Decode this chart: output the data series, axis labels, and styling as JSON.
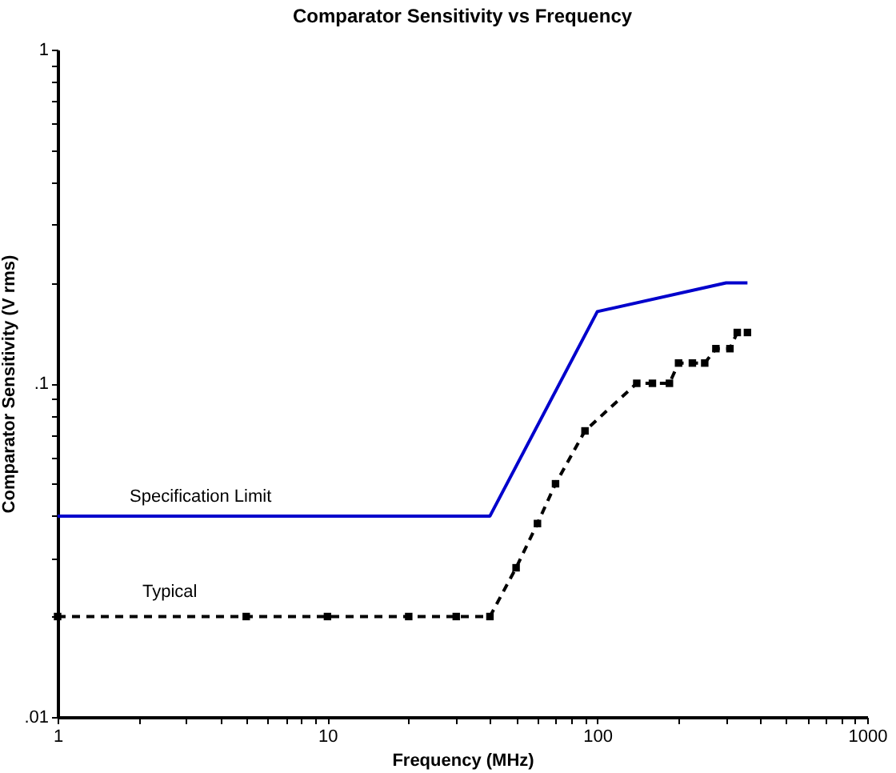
{
  "chart_data": {
    "type": "line",
    "title": "Comparator Sensitivity vs Frequency",
    "xlabel": "Frequency (MHz)",
    "ylabel": "Comparator Sensitivity (V rms)",
    "log": "xy",
    "xlim": [
      1,
      1000
    ],
    "ylim": [
      0.01,
      1
    ],
    "xticks": [
      1,
      {
        "value": 2,
        "label": null
      },
      {
        "value": 3,
        "label": null
      },
      {
        "value": 4,
        "label": null
      },
      {
        "value": 5,
        "label": null
      },
      {
        "value": 6,
        "label": null
      },
      {
        "value": 7,
        "label": null
      },
      {
        "value": 8,
        "label": null
      },
      {
        "value": 9,
        "label": null
      },
      10,
      {
        "value": 20,
        "label": null
      },
      {
        "value": 30,
        "label": null
      },
      {
        "value": 40,
        "label": null
      },
      {
        "value": 50,
        "label": null
      },
      {
        "value": 60,
        "label": null
      },
      {
        "value": 70,
        "label": null
      },
      {
        "value": 80,
        "label": null
      },
      {
        "value": 90,
        "label": null
      },
      100,
      {
        "value": 200,
        "label": null
      },
      {
        "value": 300,
        "label": null
      },
      {
        "value": 400,
        "label": null
      },
      {
        "value": 500,
        "label": null
      },
      {
        "value": 600,
        "label": null
      },
      {
        "value": 700,
        "label": null
      },
      {
        "value": 800,
        "label": null
      },
      {
        "value": 900,
        "label": null
      },
      1000
    ],
    "yticks": [
      {
        "value": 0.01,
        "label": ".01"
      },
      {
        "value": 0.02,
        "label": null
      },
      {
        "value": 0.03,
        "label": null
      },
      {
        "value": 0.04,
        "label": null
      },
      {
        "value": 0.05,
        "label": null
      },
      {
        "value": 0.06,
        "label": null
      },
      {
        "value": 0.07,
        "label": null
      },
      {
        "value": 0.08,
        "label": null
      },
      {
        "value": 0.09,
        "label": null
      },
      {
        "value": 0.1,
        "label": ".1"
      },
      {
        "value": 0.2,
        "label": null
      },
      {
        "value": 0.3,
        "label": null
      },
      {
        "value": 0.4,
        "label": null
      },
      {
        "value": 0.5,
        "label": null
      },
      {
        "value": 0.6,
        "label": null
      },
      {
        "value": 0.7,
        "label": null
      },
      {
        "value": 0.8,
        "label": null
      },
      {
        "value": 0.9,
        "label": null
      },
      {
        "value": 1,
        "label": "1"
      }
    ],
    "series": [
      {
        "name": "Specification Limit",
        "color": "#0000cc",
        "line_style": "solid",
        "marker": "none",
        "x": [
          1,
          40,
          100,
          300,
          360
        ],
        "values": [
          0.04,
          0.04,
          0.164,
          0.2,
          0.2
        ]
      },
      {
        "name": "Typical",
        "color": "#000000",
        "line_style": "dashed",
        "marker": "square",
        "x": [
          1,
          5,
          10,
          20,
          30,
          40,
          50,
          60,
          70,
          90,
          140,
          160,
          185,
          200,
          225,
          250,
          275,
          310,
          330,
          360
        ],
        "values": [
          0.02,
          0.02,
          0.02,
          0.02,
          0.02,
          0.02,
          0.028,
          0.038,
          0.05,
          0.072,
          0.1,
          0.1,
          0.1,
          0.115,
          0.115,
          0.115,
          0.127,
          0.127,
          0.142,
          0.142
        ]
      }
    ]
  }
}
